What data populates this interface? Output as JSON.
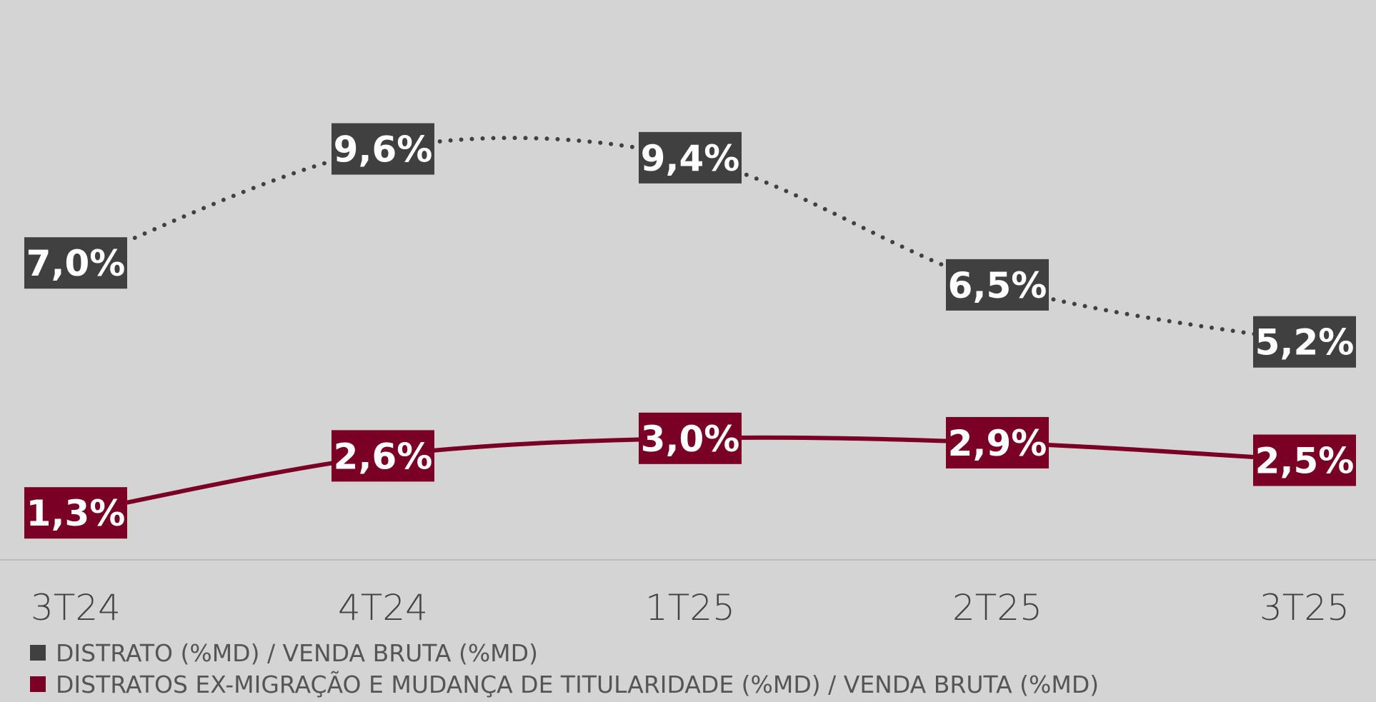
{
  "chart_data": {
    "type": "line",
    "categories": [
      "3T24",
      "4T24",
      "1T25",
      "2T25",
      "3T25"
    ],
    "series": [
      {
        "name": "DISTRATO (%MD) / VENDA BRUTA (%MD)",
        "color": "#404040",
        "style": "dotted",
        "values": [
          7.0,
          9.6,
          9.4,
          6.5,
          5.2
        ],
        "value_labels": [
          "7,0%",
          "9,6%",
          "9,4%",
          "6,5%",
          "5,2%"
        ]
      },
      {
        "name": "DISTRATOS EX-MIGRAÇÃO E MUDANÇA DE TITULARIDADE (%MD) / VENDA BRUTA (%MD)",
        "color": "#7a0026",
        "style": "solid",
        "values": [
          1.3,
          2.6,
          3.0,
          2.9,
          2.5
        ],
        "value_labels": [
          "1,3%",
          "2,6%",
          "3,0%",
          "2,9%",
          "2,5%"
        ]
      }
    ]
  }
}
